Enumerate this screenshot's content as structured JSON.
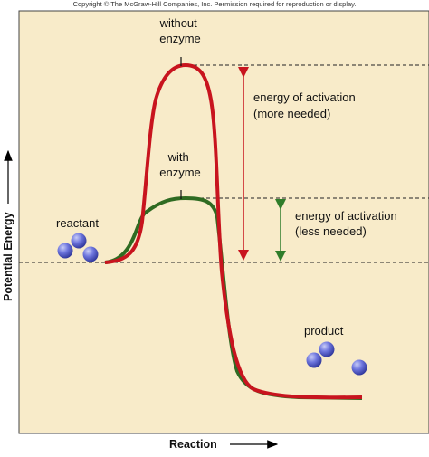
{
  "copyright": "Copyright © The McGraw-Hill Companies, Inc. Permission required for reproduction or display.",
  "labels": {
    "without_enzyme": [
      "without",
      "enzyme"
    ],
    "with_enzyme": [
      "with",
      "enzyme"
    ],
    "activation_more": [
      "energy of activation",
      "(more needed)"
    ],
    "activation_less": [
      "energy of activation",
      "(less needed)"
    ],
    "reactant": "reactant",
    "product": "product",
    "y_axis": "Potential Energy",
    "x_axis": "Reaction"
  },
  "colors": {
    "background": "#f8ebc9",
    "without_enzyme_curve": "#c8141e",
    "with_enzyme_curve": "#2f6b22",
    "red_arrow": "#c8141e",
    "green_arrow": "#2f7d2a",
    "molecule": "#4a55c9"
  }
}
